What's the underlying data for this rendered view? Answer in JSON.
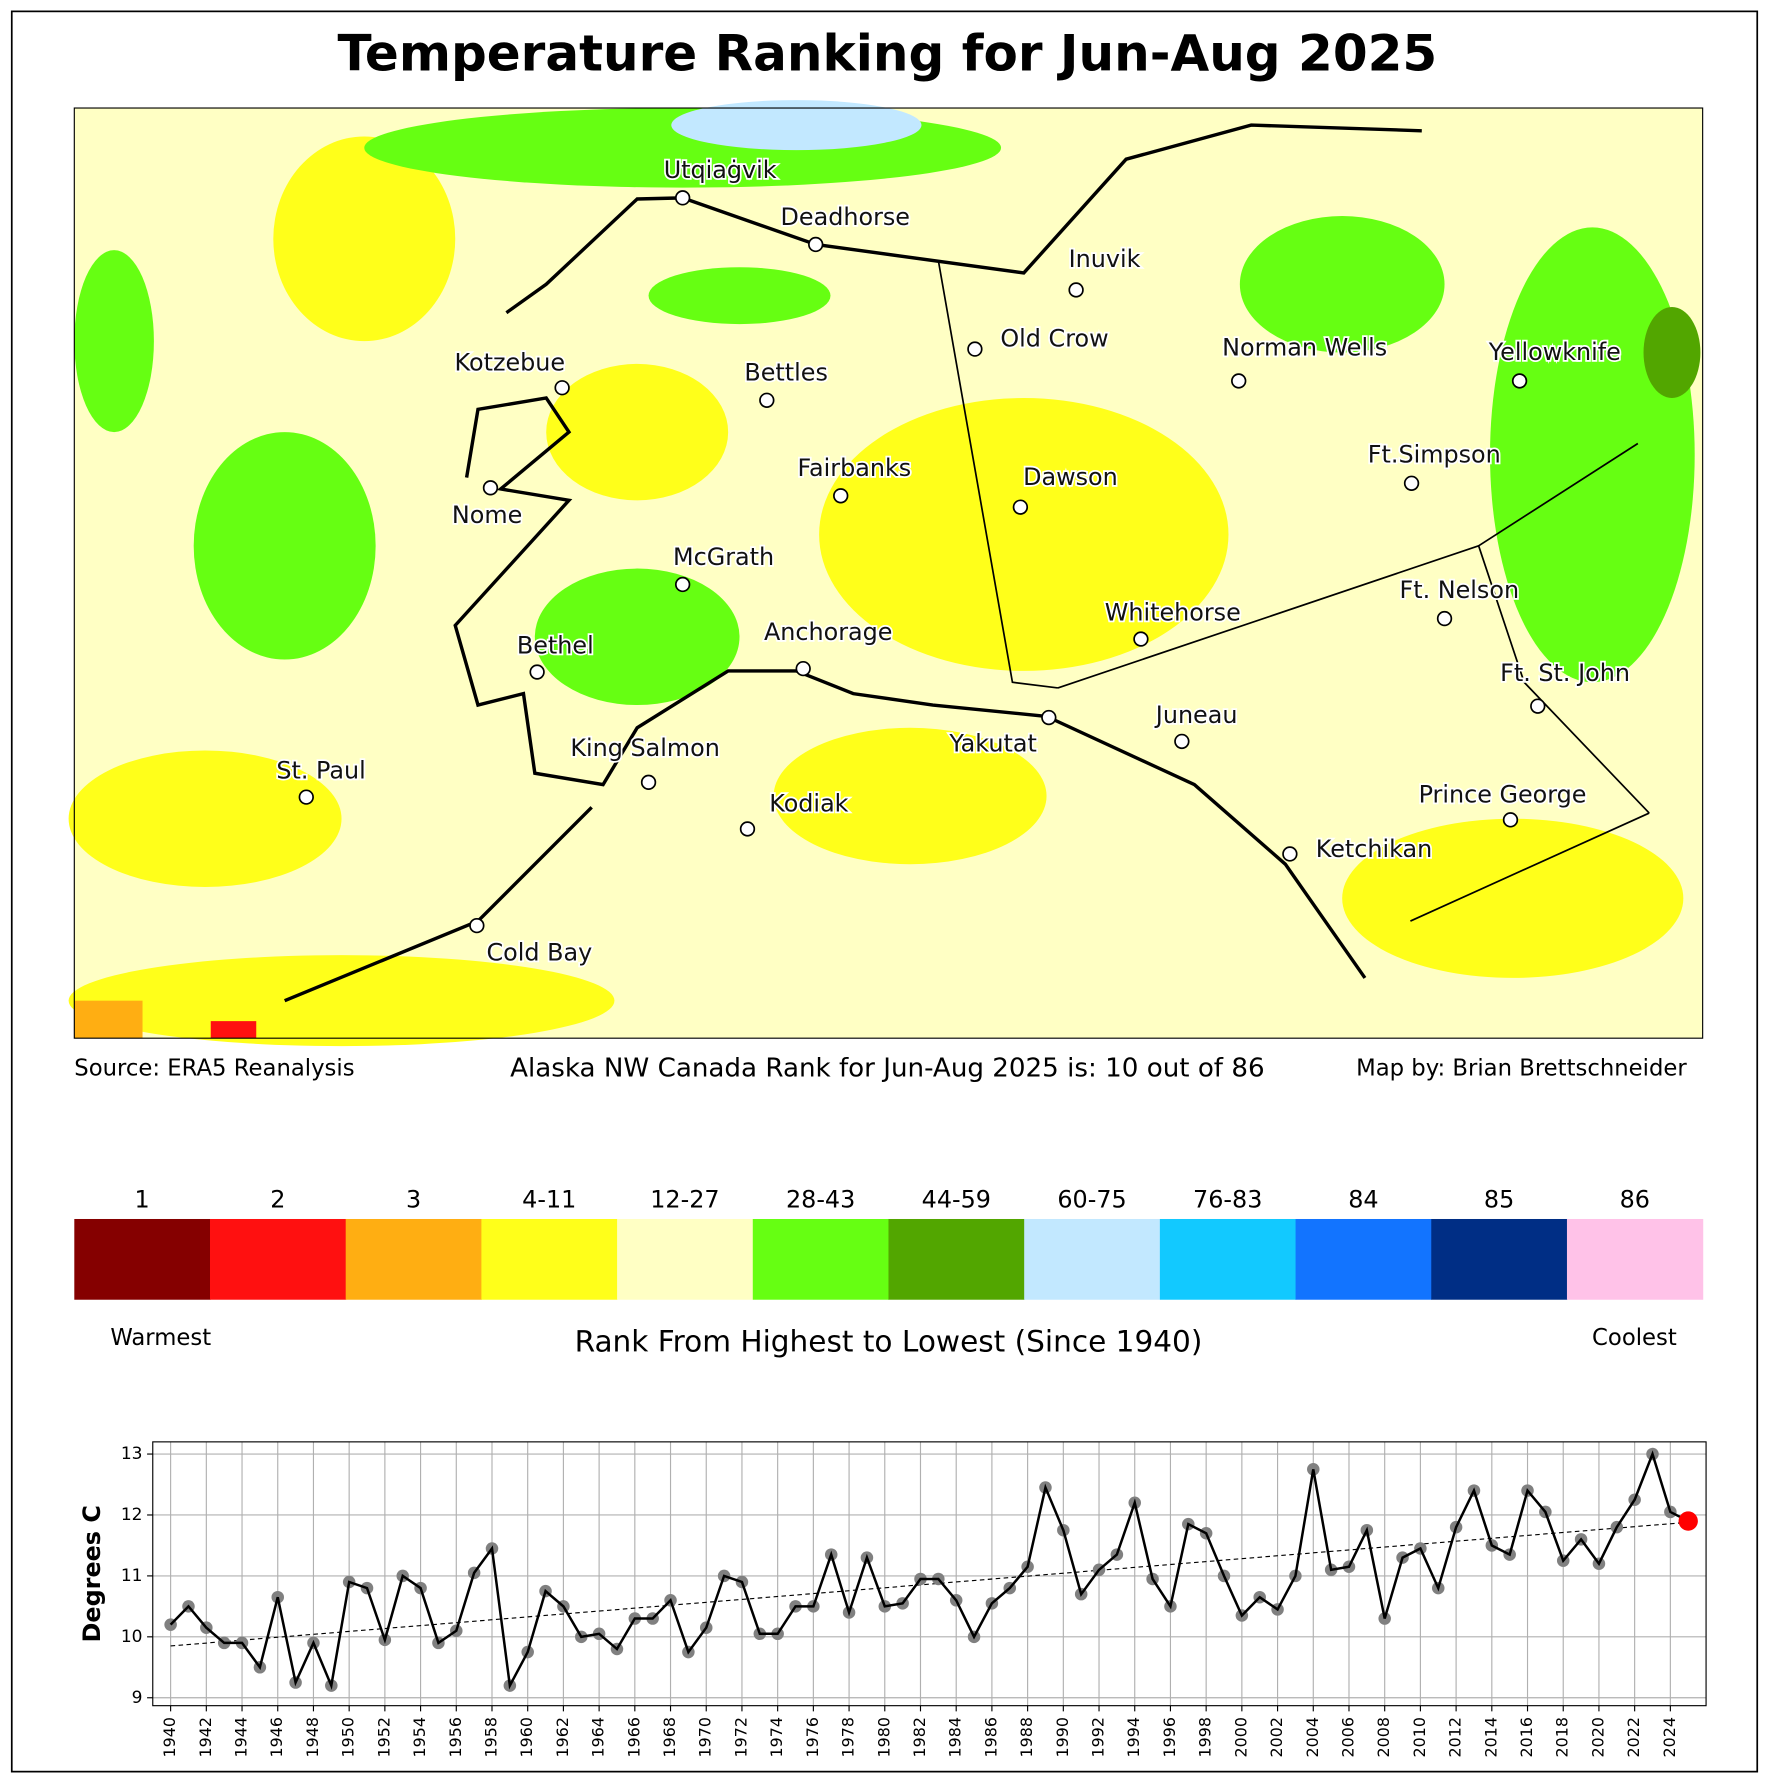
{
  "title": "Temperature Ranking for Jun-Aug 2025",
  "map": {
    "cities": [
      "Utqiaġvik",
      "Deadhorse",
      "Inuvik",
      "Old Crow",
      "Norman Wells",
      "Yellowknife",
      "Kotzebue",
      "Bettles",
      "Ft.Simpson",
      "Fairbanks",
      "Dawson",
      "Nome",
      "McGrath",
      "Whitehorse",
      "Ft. Nelson",
      "Anchorage",
      "Bethel",
      "Ft. St. John",
      "Juneau",
      "Yakutat",
      "King Salmon",
      "St. Paul",
      "Kodiak",
      "Prince George",
      "Ketchikan",
      "Cold Bay"
    ]
  },
  "footer": {
    "source": "Source: ERA5 Reanalysis",
    "rank": "Alaska NW Canada Rank for Jun-Aug 2025 is: 10 out of 86",
    "author": "Map by: Brian Brettschneider"
  },
  "legend": {
    "labels": [
      "1",
      "2",
      "3",
      "4-11",
      "12-27",
      "28-43",
      "44-59",
      "60-75",
      "76-83",
      "84",
      "85",
      "86"
    ],
    "colors": [
      "#850000",
      "#ff1010",
      "#ffae12",
      "#ffff1a",
      "#ffffc4",
      "#66ff12",
      "#52a600",
      "#c2e8ff",
      "#12c9ff",
      "#1274ff",
      "#002e85",
      "#ffc2e8"
    ],
    "warmest": "Warmest",
    "coolest": "Coolest",
    "caption": "Rank From Highest to Lowest (Since 1940)"
  },
  "chart_data": {
    "type": "line",
    "ylabel": "Degrees C",
    "x": [
      1940,
      1941,
      1942,
      1943,
      1944,
      1945,
      1946,
      1947,
      1948,
      1949,
      1950,
      1951,
      1952,
      1953,
      1954,
      1955,
      1956,
      1957,
      1958,
      1959,
      1960,
      1961,
      1962,
      1963,
      1964,
      1965,
      1966,
      1967,
      1968,
      1969,
      1970,
      1971,
      1972,
      1973,
      1974,
      1975,
      1976,
      1977,
      1978,
      1979,
      1980,
      1981,
      1982,
      1983,
      1984,
      1985,
      1986,
      1987,
      1988,
      1989,
      1990,
      1991,
      1992,
      1993,
      1994,
      1995,
      1996,
      1997,
      1998,
      1999,
      2000,
      2001,
      2002,
      2003,
      2004,
      2005,
      2006,
      2007,
      2008,
      2009,
      2010,
      2011,
      2012,
      2013,
      2014,
      2015,
      2016,
      2017,
      2018,
      2019,
      2020,
      2021,
      2022,
      2023,
      2024,
      2025
    ],
    "values": [
      10.2,
      10.5,
      10.15,
      9.9,
      9.9,
      9.5,
      10.65,
      9.25,
      9.9,
      9.2,
      10.9,
      10.8,
      9.95,
      11.0,
      10.8,
      9.9,
      10.1,
      11.05,
      11.45,
      9.2,
      9.75,
      10.75,
      10.5,
      10.0,
      10.05,
      9.8,
      10.3,
      10.3,
      10.6,
      9.75,
      10.15,
      11.0,
      10.9,
      10.05,
      10.05,
      10.5,
      10.5,
      11.35,
      10.4,
      11.3,
      10.5,
      10.55,
      10.95,
      10.95,
      10.6,
      10.0,
      10.55,
      10.8,
      11.15,
      12.45,
      11.75,
      10.7,
      11.1,
      11.35,
      12.2,
      10.95,
      10.5,
      11.85,
      11.7,
      11.0,
      10.35,
      10.65,
      10.45,
      11.0,
      12.75,
      11.1,
      11.15,
      11.75,
      10.3,
      11.3,
      11.45,
      10.8,
      11.8,
      12.4,
      11.5,
      11.35,
      12.4,
      12.05,
      11.25,
      11.6,
      11.2,
      11.8,
      12.25,
      13.0,
      12.05,
      11.9
    ],
    "color": "#000000",
    "marker_color": "#808080",
    "highlight_color": "#ff0000",
    "trend": {
      "x": [
        1940,
        2025
      ],
      "values": [
        9.85,
        11.88
      ]
    },
    "xlim": [
      1939,
      2026
    ],
    "ylim": [
      8.87,
      13.2
    ],
    "xticks": [
      1940,
      1942,
      1944,
      1946,
      1948,
      1950,
      1952,
      1954,
      1956,
      1958,
      1960,
      1962,
      1964,
      1966,
      1968,
      1970,
      1972,
      1974,
      1976,
      1978,
      1980,
      1982,
      1984,
      1986,
      1988,
      1990,
      1992,
      1994,
      1996,
      1998,
      2000,
      2002,
      2004,
      2006,
      2008,
      2010,
      2012,
      2014,
      2016,
      2018,
      2020,
      2022,
      2024
    ],
    "yticks": [
      9,
      10,
      11,
      12,
      13
    ],
    "grid": true
  }
}
